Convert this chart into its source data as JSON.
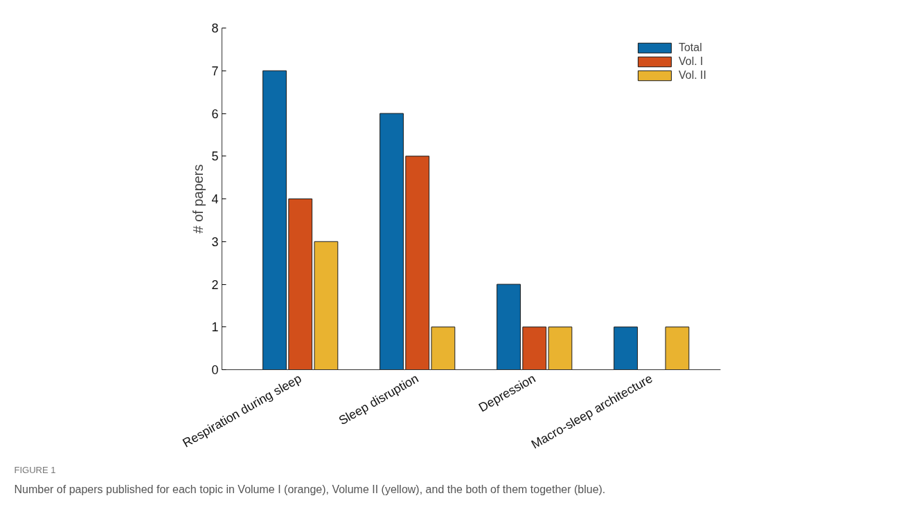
{
  "chart_data": {
    "type": "bar",
    "ylabel": "# of papers",
    "categories": [
      "Respiration during sleep",
      "Sleep disruption",
      "Depression",
      "Macro-sleep architecture"
    ],
    "series": [
      {
        "name": "Total",
        "color": "#0b6aa8",
        "values": [
          7,
          6,
          2,
          1
        ]
      },
      {
        "name": "Vol. I",
        "color": "#d24f1b",
        "values": [
          4,
          5,
          1,
          0
        ]
      },
      {
        "name": "Vol. II",
        "color": "#e9b330",
        "values": [
          3,
          1,
          1,
          1
        ]
      }
    ],
    "ylim": [
      0,
      8
    ],
    "yticks": [
      0,
      1,
      2,
      3,
      4,
      5,
      6,
      7,
      8
    ],
    "grid": false,
    "legend": "top right",
    "annotations": [
      "FIGURE 1",
      "Number of papers published for each topic in Volume I (orange), Volume II (yellow), and the both of them together (blue)."
    ]
  }
}
